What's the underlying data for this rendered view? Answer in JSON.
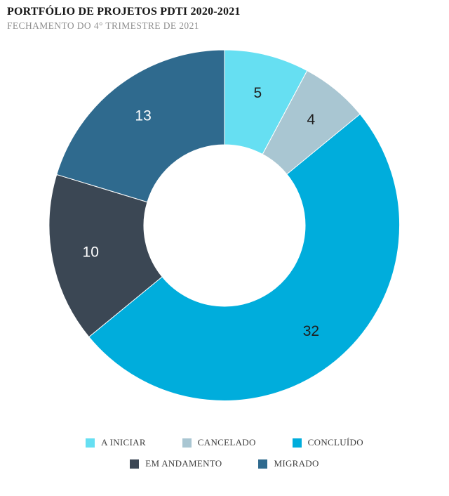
{
  "header": {
    "title": "PORTFÓLIO DE PROJETOS PDTI 2020-2021",
    "subtitle": "FECHAMENTO DO 4° TRIMESTRE DE 2021"
  },
  "chart_data": {
    "type": "pie",
    "subtype": "donut",
    "title": "Portfólio de Projetos PDTI 2020-2021",
    "total": 64,
    "start_angle_deg": 0,
    "direction": "clockwise",
    "inner_radius_ratio": 0.46,
    "legend_position": "bottom",
    "segments": [
      {
        "label": "A INICIAR",
        "value": 5,
        "color": "#66DFF2",
        "label_color": "#1e1e1e"
      },
      {
        "label": "CANCELADO",
        "value": 4,
        "color": "#A9C6D2",
        "label_color": "#1e1e1e"
      },
      {
        "label": "CONCLUÍDO",
        "value": 32,
        "color": "#00ADDC",
        "label_color": "#1e1e1e"
      },
      {
        "label": "EM ANDAMENTO",
        "value": 10,
        "color": "#3B4754",
        "label_color": "#ffffff"
      },
      {
        "label": "MIGRADO",
        "value": 13,
        "color": "#2F6A8E",
        "label_color": "#ffffff"
      }
    ]
  }
}
